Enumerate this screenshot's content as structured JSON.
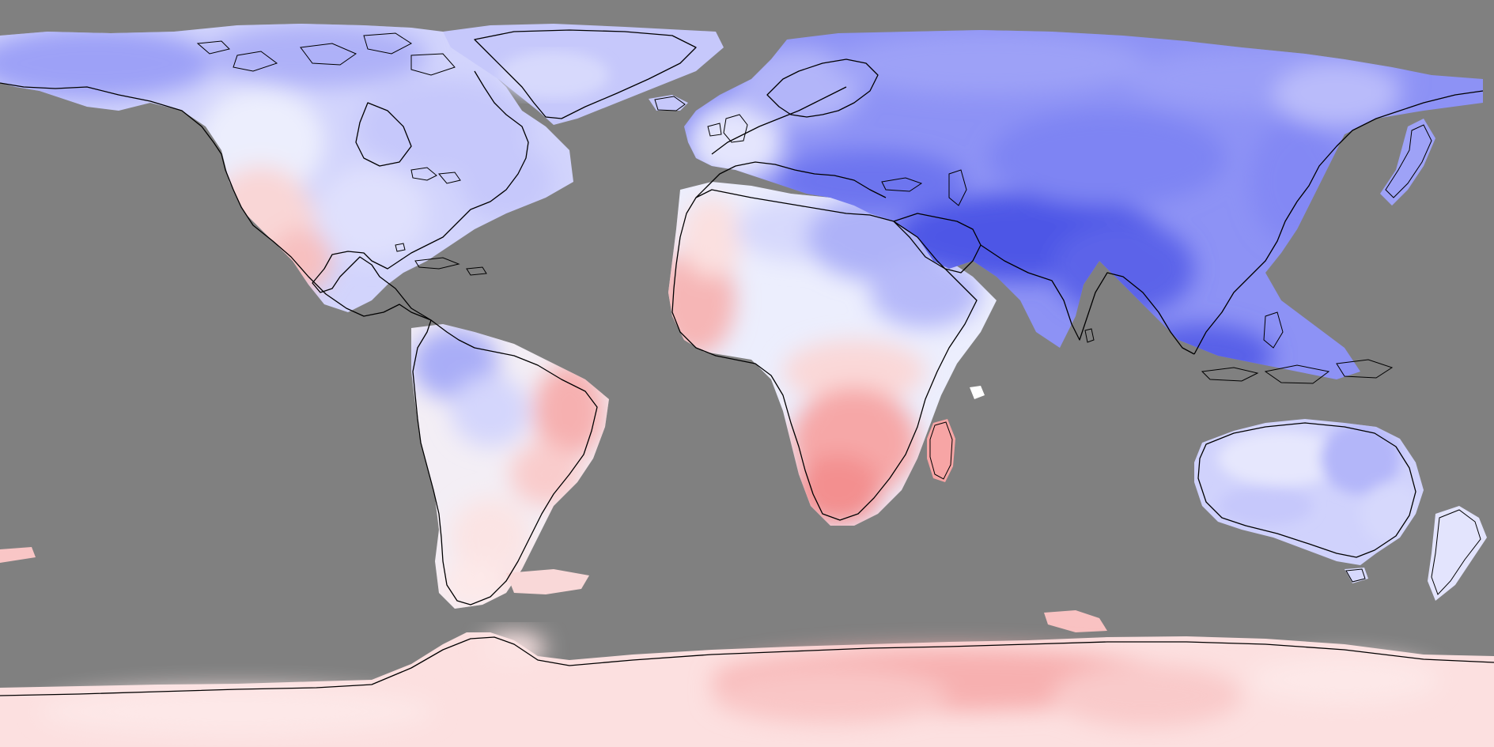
{
  "map": {
    "projection": "equirectangular",
    "ocean_color": "#808080",
    "coastline_color": "#000000",
    "colors": {
      "deep_blue": "#4e56e6",
      "blue": "#7c83f3",
      "mid_blue": "#9da1f7",
      "light_blue": "#c6c8fb",
      "pale_blue": "#e4e5fd",
      "near_white": "#f6f0f2",
      "pale_pink": "#fcdede",
      "light_pink": "#f9c2c2",
      "pink": "#f6a3a3",
      "deep_pink": "#f28a8a"
    }
  }
}
